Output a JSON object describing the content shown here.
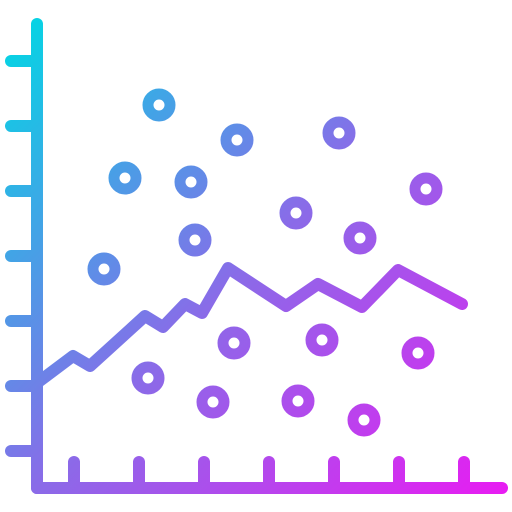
{
  "icon": {
    "name": "scatter-line-chart-icon",
    "gradient": {
      "start_color": "#00D8E4",
      "mid_color": "#8A6BE8",
      "end_color": "#E81CF2"
    },
    "background": "#FFFFFF"
  }
}
